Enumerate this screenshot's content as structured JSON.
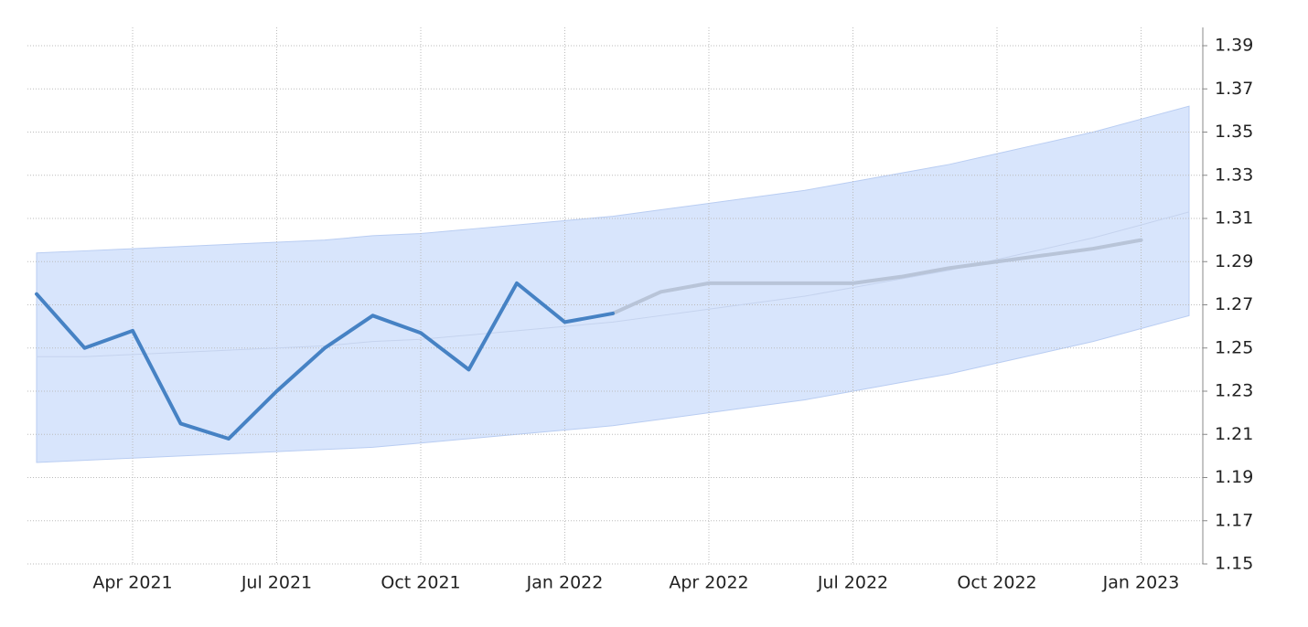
{
  "chart_data": {
    "type": "line",
    "categories": [
      null,
      null,
      "Apr 2021",
      null,
      null,
      "Jul 2021",
      null,
      null,
      "Oct 2021",
      null,
      null,
      "Jan 2022",
      null,
      null,
      "Apr 2022",
      null,
      null,
      "Jul 2022",
      null,
      null,
      "Oct 2022",
      null,
      null,
      "Jan 2023",
      null
    ],
    "series": [
      {
        "color": "#4682c4",
        "values": [
          1.275,
          1.25,
          1.258,
          1.215,
          1.208,
          1.23,
          1.25,
          1.265,
          1.257,
          1.24,
          1.28,
          1.262,
          1.266,
          null,
          null,
          null,
          null,
          null,
          null,
          null,
          null,
          null,
          null,
          null,
          null
        ]
      },
      {
        "color": "#b8c4d8",
        "values": [
          null,
          null,
          null,
          null,
          null,
          null,
          null,
          null,
          null,
          null,
          null,
          null,
          1.266,
          1.276,
          1.28,
          1.28,
          1.28,
          1.28,
          1.283,
          1.287,
          1.29,
          1.293,
          1.296,
          1.3,
          null
        ]
      },
      {
        "color": "#c5d3ee",
        "values": [
          1.246,
          1.246,
          1.247,
          1.248,
          1.249,
          1.25,
          1.251,
          1.253,
          1.254,
          1.256,
          1.258,
          1.26,
          1.262,
          1.265,
          1.268,
          1.271,
          1.274,
          1.278,
          1.282,
          1.286,
          1.291,
          1.296,
          1.301,
          1.307,
          1.313
        ]
      }
    ],
    "band": {
      "color": "#d6e4fc",
      "upper": [
        1.294,
        1.295,
        1.296,
        1.297,
        1.298,
        1.299,
        1.3,
        1.302,
        1.303,
        1.305,
        1.307,
        1.309,
        1.311,
        1.314,
        1.317,
        1.32,
        1.323,
        1.327,
        1.331,
        1.335,
        1.34,
        1.345,
        1.35,
        1.356,
        1.362
      ],
      "lower": [
        1.197,
        1.198,
        1.199,
        1.2,
        1.201,
        1.202,
        1.203,
        1.204,
        1.206,
        1.208,
        1.21,
        1.212,
        1.214,
        1.217,
        1.22,
        1.223,
        1.226,
        1.23,
        1.234,
        1.238,
        1.243,
        1.248,
        1.253,
        1.259,
        1.265
      ]
    },
    "ylim": [
      1.15,
      1.39
    ],
    "yticks": [
      1.15,
      1.17,
      1.19,
      1.21,
      1.23,
      1.25,
      1.27,
      1.29,
      1.31,
      1.33,
      1.35,
      1.37,
      1.39
    ],
    "grid": true
  }
}
